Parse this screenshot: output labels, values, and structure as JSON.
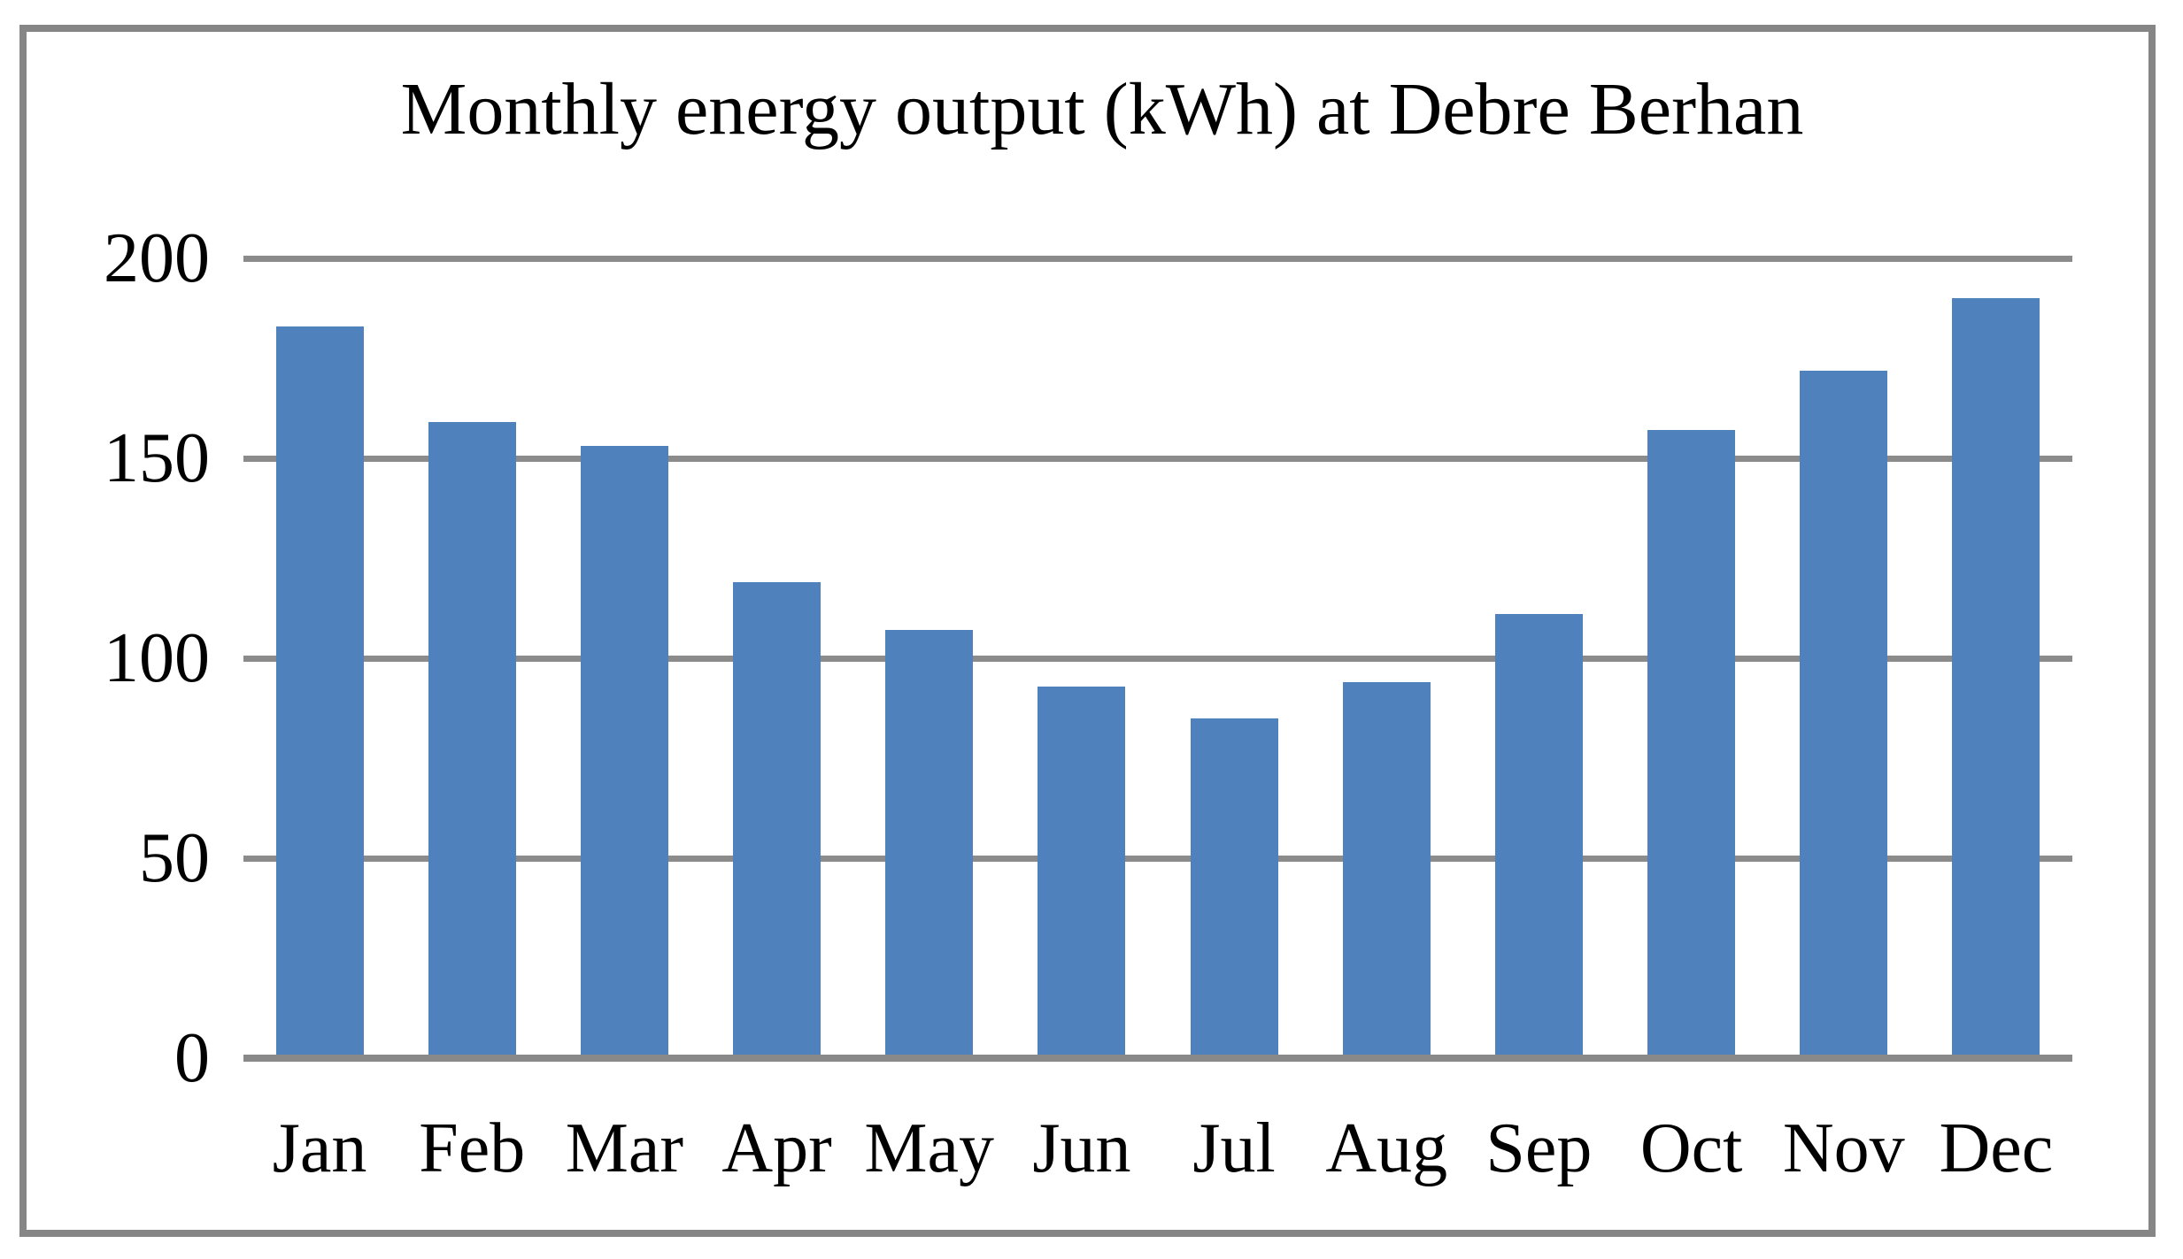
{
  "chart_data": {
    "type": "bar",
    "title": "Monthly energy output (kWh) at Debre Berhan",
    "categories": [
      "Jan",
      "Feb",
      "Mar",
      "Apr",
      "May",
      "Jun",
      "Jul",
      "Aug",
      "Sep",
      "Oct",
      "Nov",
      "Dec"
    ],
    "values": [
      183,
      159,
      153,
      119,
      107,
      93,
      85,
      94,
      111,
      157,
      172,
      190
    ],
    "xlabel": "",
    "ylabel": "",
    "ylim": [
      0,
      200
    ],
    "yticks": [
      0,
      50,
      100,
      150,
      200
    ],
    "grid": true,
    "legend_position": "none",
    "bar_color": "#4F81BD",
    "gridline_color": "#8B8B8B",
    "axis_color": "#898989",
    "frame_color": "#868686",
    "text_color": "#000000",
    "background_color": "#FFFFFF"
  }
}
